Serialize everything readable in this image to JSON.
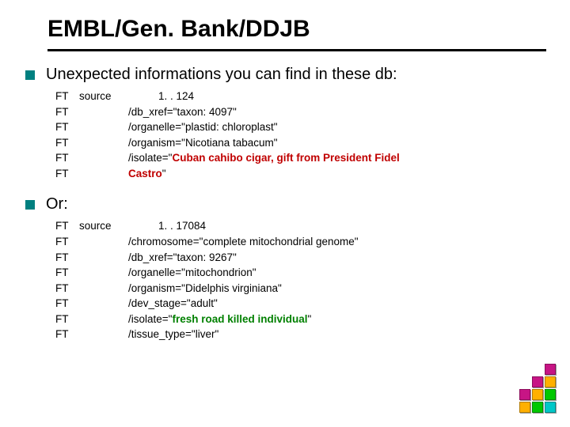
{
  "title": "EMBL/Gen. Bank/DDJB",
  "sections": [
    {
      "heading": "Unexpected informations you can find in these db:"
    },
    {
      "heading": "Or:"
    }
  ],
  "block1": {
    "l1_tag": "FT",
    "l1_key": "source",
    "l1_val": "1. . 124",
    "l2_tag": "FT",
    "l2_val": "/db_xref=\"taxon: 4097\"",
    "l3_tag": "FT",
    "l3_val": "/organelle=\"plastid: chloroplast\"",
    "l4_tag": "FT",
    "l4_val": "/organism=\"Nicotiana tabacum\"",
    "l5_tag": "FT",
    "l5_pre": "/isolate=\"",
    "l5_hl": "Cuban cahibo cigar, gift from President Fidel",
    "l6_tag": "FT",
    "l6_hl": "Castro",
    "l6_post": "\""
  },
  "block2": {
    "l1_tag": "FT",
    "l1_key": "source",
    "l1_val": "1. . 17084",
    "l2_tag": "FT",
    "l2_val": "/chromosome=\"complete mitochondrial genome\"",
    "l3_tag": "FT",
    "l3_val": "/db_xref=\"taxon: 9267\"",
    "l4_tag": "FT",
    "l4_val": "/organelle=\"mitochondrion\"",
    "l5_tag": "FT",
    "l5_val": "/organism=\"Didelphis virginiana\"",
    "l6_tag": "FT",
    "l6_val": "/dev_stage=\"adult\"",
    "l7_tag": "FT",
    "l7_pre": "/isolate=\"",
    "l7_hl": "fresh road killed individual",
    "l7_post": "\"",
    "l8_tag": "FT",
    "l8_val": "/tissue_type=\"liver\""
  },
  "decor_colors": [
    "#ffffff",
    "#ffffff",
    "#c71585",
    "#ffffff",
    "#c71585",
    "#ffb000",
    "#c71585",
    "#ffb000",
    "#00c800",
    "#ffb000",
    "#00c800",
    "#00c8c8"
  ]
}
